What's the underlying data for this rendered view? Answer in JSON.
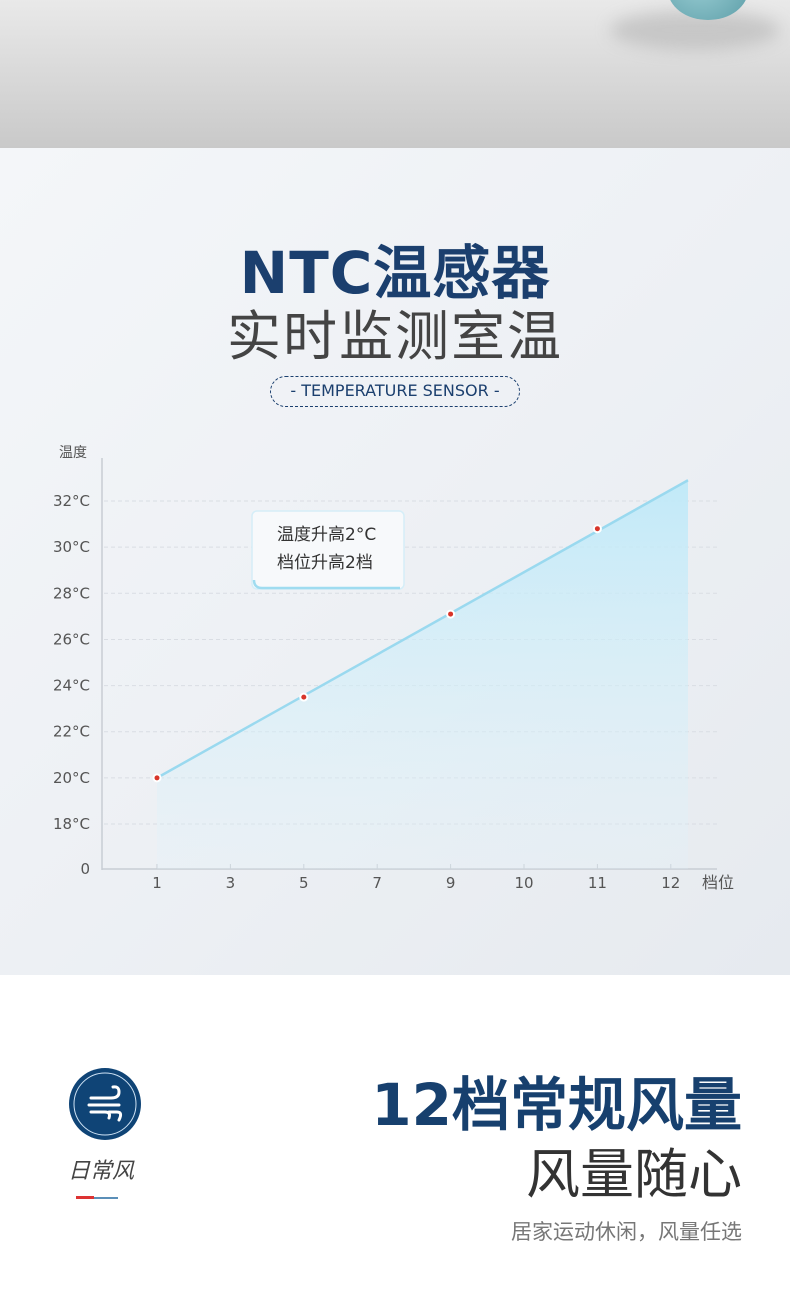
{
  "header": {
    "title": "NTC温感器",
    "subtitle": "实时监测室温",
    "tag": "- TEMPERATURE SENSOR -"
  },
  "chart_data": {
    "type": "area",
    "ylabel": "温度",
    "xlabel": "档位",
    "categories": [
      "1",
      "3",
      "5",
      "7",
      "9",
      "10",
      "11",
      "12"
    ],
    "y_ticks": [
      "0",
      "18°C",
      "20°C",
      "22°C",
      "24°C",
      "26°C",
      "28°C",
      "30°C",
      "32°C"
    ],
    "points": [
      {
        "x": "1",
        "y": 20
      },
      {
        "x": "5",
        "y": 23.5
      },
      {
        "x": "9",
        "y": 27.1
      },
      {
        "x": "11",
        "y": 30.8
      }
    ],
    "line_end": {
      "y": 32.9
    },
    "grid": true,
    "annotation": [
      "温度升高2°C",
      "档位升高2档"
    ],
    "colors": {
      "line": "#9ad9ef",
      "fill": "#c8ecf8",
      "point": "#d8352a"
    }
  },
  "feature": {
    "icon": "wind-icon",
    "icon_label": "日常风",
    "title": "12档常规风量",
    "subtitle": "风量随心",
    "description": "居家运动休闲，风量任选",
    "accent": "#17406e"
  }
}
